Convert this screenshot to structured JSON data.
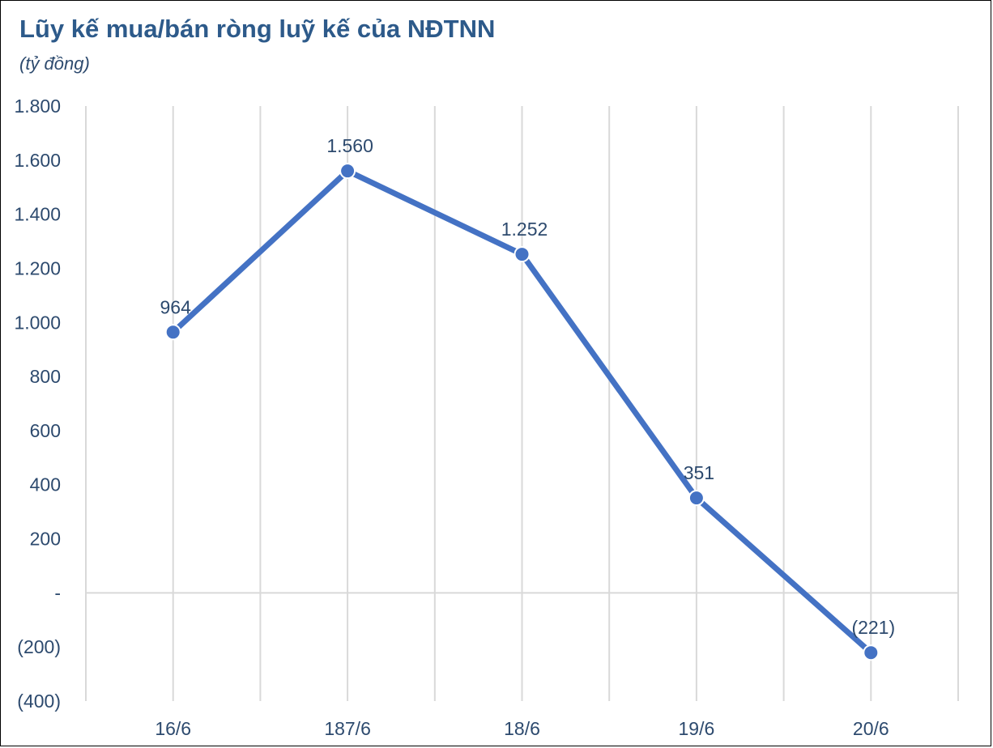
{
  "chart_data": {
    "type": "line",
    "title": "Lũy kế mua/bán ròng luỹ kế của NĐTNN",
    "subtitle": "(tỷ đồng)",
    "categories": [
      "16/6",
      "187/6",
      "18/6",
      "19/6",
      "20/6"
    ],
    "series": [
      {
        "values": [
          964,
          1560,
          1252,
          351,
          -221
        ]
      }
    ],
    "data_labels": [
      "964",
      "1.560",
      "1.252",
      "351",
      "(221)"
    ],
    "y_ticks": [
      {
        "value": 1800,
        "label": "1.800"
      },
      {
        "value": 1600,
        "label": "1.600"
      },
      {
        "value": 1400,
        "label": "1.400"
      },
      {
        "value": 1200,
        "label": "1.200"
      },
      {
        "value": 1000,
        "label": "1.000"
      },
      {
        "value": 800,
        "label": "800"
      },
      {
        "value": 600,
        "label": "600"
      },
      {
        "value": 400,
        "label": "400"
      },
      {
        "value": 200,
        "label": "200"
      },
      {
        "value": 0,
        "label": "-"
      },
      {
        "value": -200,
        "label": "(200)"
      },
      {
        "value": -400,
        "label": "(400)"
      }
    ],
    "ylim": [
      -400,
      1800
    ],
    "grid": "vertical",
    "colors": {
      "line": "#4472c4",
      "grid": "#d9d9d9",
      "text": "#2d4a6e",
      "title": "#2d5a8a"
    }
  }
}
